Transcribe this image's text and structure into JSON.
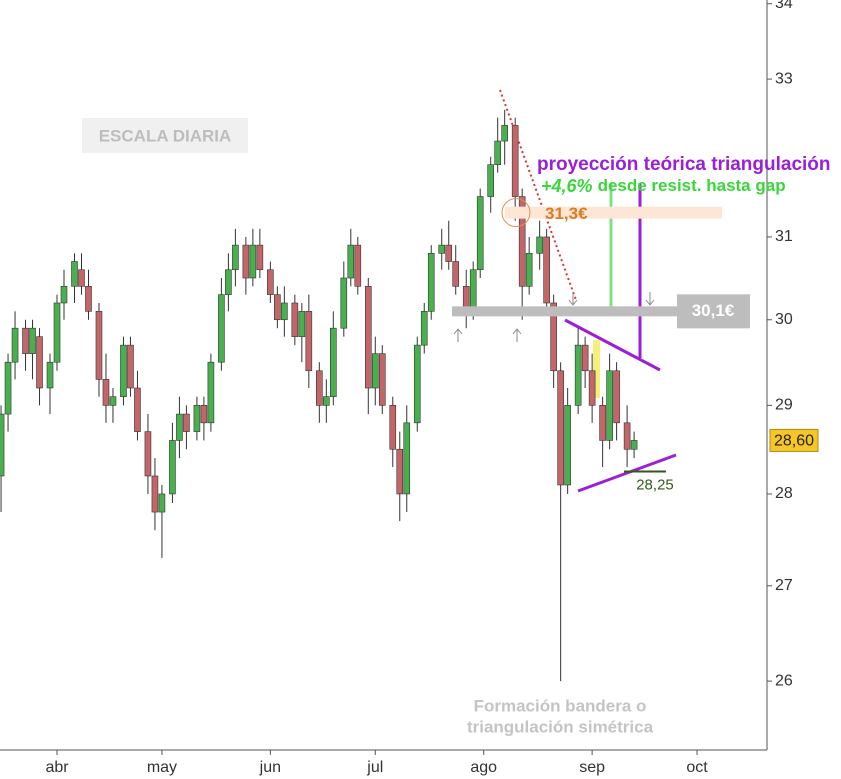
{
  "chart_data": {
    "type": "candlestick",
    "log_scale": true,
    "up_color": "#4aaf4e",
    "down_color": "#c2666a",
    "xlim": [
      74.7,
      294
    ],
    "xticks": [
      {
        "value": 91,
        "label": "abr"
      },
      {
        "value": 121,
        "label": "may"
      },
      {
        "value": 152,
        "label": "jun"
      },
      {
        "value": 182,
        "label": "jul"
      },
      {
        "value": 213,
        "label": "ago"
      },
      {
        "value": 244,
        "label": "sep"
      },
      {
        "value": 274,
        "label": "oct"
      }
    ],
    "ylim": [
      25.3,
      34.05
    ],
    "yticks": [
      26,
      27,
      28,
      29,
      30,
      31,
      33,
      34
    ],
    "last_price": {
      "value": 28.6,
      "label": "28,60"
    },
    "x": [
      75,
      77,
      79,
      82,
      84,
      86,
      89,
      91,
      93,
      96,
      98,
      100,
      103,
      105,
      107,
      110,
      112,
      114,
      117,
      119,
      121,
      124,
      126,
      128,
      131,
      133,
      135,
      138,
      140,
      142,
      145,
      147,
      149,
      152,
      154,
      156,
      159,
      161,
      163,
      166,
      168,
      170,
      173,
      175,
      177,
      180,
      182,
      184,
      187,
      189,
      191,
      194,
      196,
      198,
      201,
      203,
      205,
      208,
      210,
      212,
      215,
      217,
      219,
      222,
      224,
      226,
      229,
      231,
      233,
      235,
      237,
      240,
      242,
      244,
      247,
      249,
      251,
      254,
      256
    ],
    "open": [
      28.2,
      28.9,
      29.5,
      29.9,
      29.6,
      29.8,
      29.2,
      29.5,
      30.2,
      30.4,
      30.6,
      30.4,
      30.1,
      29.3,
      29.0,
      29.1,
      29.7,
      29.2,
      28.7,
      28.2,
      27.8,
      28.0,
      28.6,
      28.9,
      28.7,
      29.0,
      28.8,
      29.5,
      30.3,
      30.6,
      30.9,
      30.5,
      30.9,
      30.6,
      30.3,
      30.0,
      30.2,
      29.8,
      30.1,
      29.4,
      29.0,
      29.1,
      29.9,
      30.5,
      30.9,
      30.4,
      29.2,
      29.6,
      29.0,
      28.5,
      28.0,
      28.8,
      29.7,
      30.1,
      30.8,
      30.9,
      30.7,
      30.4,
      30.1,
      30.6,
      31.5,
      31.9,
      32.2,
      32.4,
      31.5,
      30.4,
      30.8,
      31.0,
      30.2,
      29.4,
      28.1,
      29.0,
      29.7,
      29.4,
      29.0,
      28.6,
      29.4,
      28.8,
      28.5
    ],
    "high": [
      29.0,
      29.6,
      30.1,
      30.0,
      30.0,
      29.9,
      29.6,
      30.3,
      30.6,
      30.8,
      30.8,
      30.6,
      30.2,
      29.6,
      29.2,
      29.8,
      29.8,
      29.4,
      28.9,
      28.4,
      28.1,
      28.8,
      29.1,
      29.0,
      29.1,
      29.1,
      29.6,
      30.5,
      30.8,
      31.1,
      31.0,
      31.1,
      31.1,
      30.7,
      30.4,
      30.4,
      30.3,
      30.2,
      30.3,
      29.5,
      29.3,
      30.1,
      30.7,
      31.1,
      31.0,
      30.5,
      29.8,
      29.7,
      29.1,
      28.7,
      29.0,
      29.8,
      30.2,
      30.9,
      31.1,
      31.2,
      30.9,
      30.6,
      30.7,
      31.6,
      32.0,
      32.5,
      32.6,
      32.5,
      31.6,
      31.0,
      31.2,
      31.1,
      30.3,
      29.5,
      29.2,
      29.9,
      29.8,
      29.6,
      29.1,
      29.6,
      29.5,
      29.0,
      28.7
    ],
    "low": [
      27.8,
      28.7,
      29.3,
      29.4,
      29.3,
      29.0,
      28.9,
      29.4,
      30.0,
      30.2,
      30.3,
      30.0,
      29.1,
      28.8,
      28.8,
      29.0,
      29.1,
      28.6,
      28.0,
      27.6,
      27.3,
      27.9,
      28.4,
      28.5,
      28.6,
      28.6,
      28.7,
      29.4,
      30.1,
      30.4,
      30.3,
      30.4,
      30.5,
      30.2,
      29.9,
      29.8,
      29.7,
      29.5,
      29.2,
      28.8,
      28.8,
      29.0,
      29.8,
      30.4,
      30.3,
      28.9,
      29.0,
      28.9,
      28.3,
      27.7,
      27.8,
      28.7,
      29.6,
      30.0,
      30.6,
      30.6,
      30.3,
      29.9,
      30.0,
      30.5,
      31.3,
      31.8,
      31.9,
      31.2,
      30.0,
      30.3,
      30.6,
      30.1,
      29.2,
      26.0,
      28.0,
      28.9,
      29.2,
      28.8,
      28.3,
      28.5,
      28.6,
      28.3,
      28.4
    ],
    "close": [
      28.9,
      29.5,
      29.9,
      29.6,
      29.9,
      29.2,
      29.5,
      30.2,
      30.4,
      30.7,
      30.4,
      30.1,
      29.3,
      29.0,
      29.1,
      29.7,
      29.2,
      28.7,
      28.2,
      27.8,
      28.0,
      28.6,
      28.9,
      28.7,
      29.0,
      28.8,
      29.5,
      30.3,
      30.6,
      30.9,
      30.5,
      30.9,
      30.6,
      30.3,
      30.0,
      30.2,
      29.8,
      30.1,
      29.4,
      29.0,
      29.1,
      29.9,
      30.5,
      30.9,
      30.4,
      29.2,
      29.6,
      29.0,
      28.5,
      28.0,
      28.8,
      29.7,
      30.1,
      30.8,
      30.9,
      30.7,
      30.4,
      30.1,
      30.6,
      31.5,
      31.9,
      32.2,
      32.4,
      31.5,
      30.4,
      30.8,
      31.0,
      30.2,
      29.4,
      28.1,
      29.0,
      29.7,
      29.4,
      29.0,
      28.6,
      29.4,
      28.8,
      28.5,
      28.6
    ]
  },
  "annotations": {
    "scale_note": "ESCALA DIARIA",
    "projection_title": "proyección teórica triangulación",
    "gain": {
      "value": 4.6,
      "label": "+4,6%"
    },
    "gain_text": "desde resist. hasta gap",
    "gap_level": {
      "value": 31.3,
      "label": "31,3€"
    },
    "resistance": {
      "value": 30.1,
      "label": "30,1€"
    },
    "support": {
      "value": 28.25,
      "label": "28,25"
    },
    "pattern_line1": "Formación bandera o",
    "pattern_line2": "triangulación simétrica"
  }
}
